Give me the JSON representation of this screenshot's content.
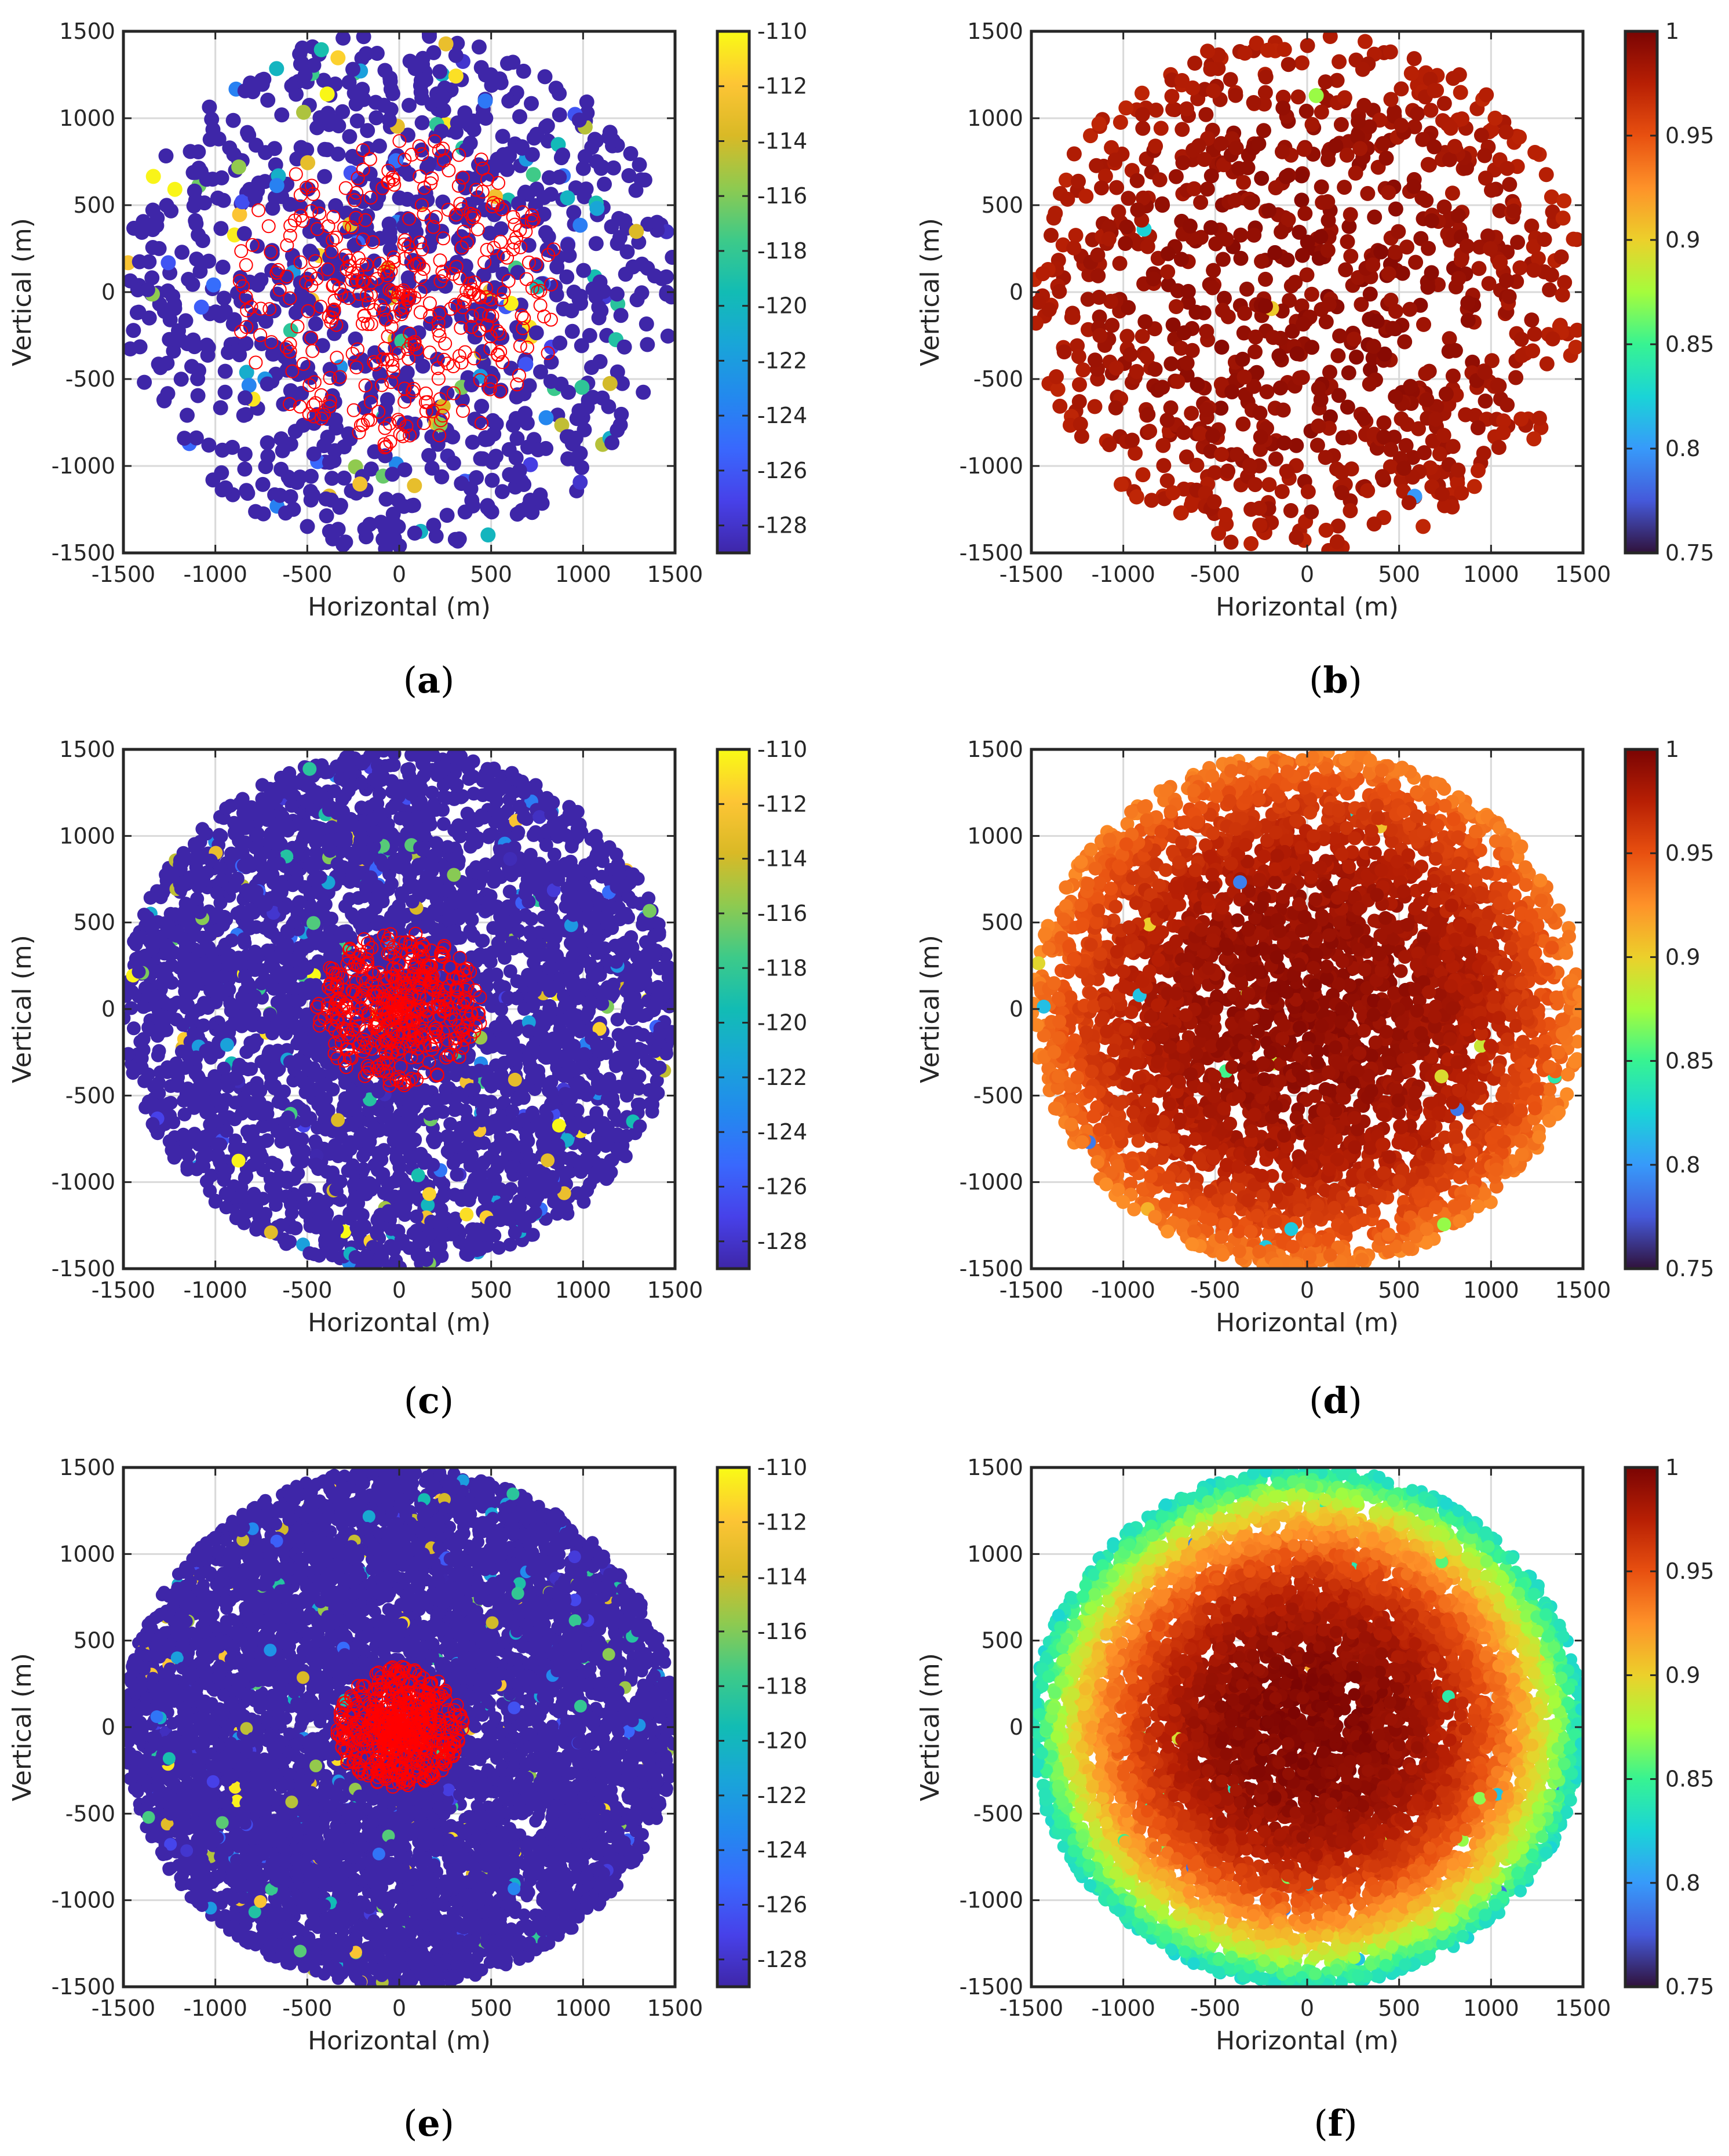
{
  "chart_data": [
    {
      "id": "a",
      "type": "scatter",
      "caption": "a",
      "xlabel": "Horizontal (m)",
      "ylabel": "Vertical (m)",
      "xlim": [
        -1500,
        1500
      ],
      "ylim": [
        -1500,
        1500
      ],
      "xticks": [
        "-1500",
        "-1000",
        "-500",
        "0",
        "500",
        "1000",
        "1500"
      ],
      "yticks": [
        "1500",
        "1000",
        "500",
        "0",
        "-500",
        "-1000",
        "-1500"
      ],
      "grid": true,
      "colorbar": {
        "colormap": "parula",
        "range": [
          -129,
          -110
        ],
        "ticks": [
          "-110",
          "-112",
          "-114",
          "-116",
          "-118",
          "-120",
          "-122",
          "-124",
          "-126",
          "-128"
        ]
      },
      "distribution": {
        "n_points": 1000,
        "radius_m": 1500,
        "dominant_value": -129,
        "outlier_fraction": 0.12,
        "highlight_circles": {
          "color": "#ff0000",
          "count": 380,
          "inner_radius_m": 900
        }
      }
    },
    {
      "id": "b",
      "type": "scatter",
      "caption": "b",
      "xlabel": "Horizontal (m)",
      "ylabel": "Vertical (m)",
      "xlim": [
        -1500,
        1500
      ],
      "ylim": [
        -1500,
        1500
      ],
      "xticks": [
        "-1500",
        "-1000",
        "-500",
        "0",
        "500",
        "1000",
        "1500"
      ],
      "yticks": [
        "1500",
        "1000",
        "500",
        "0",
        "-500",
        "-1000",
        "-1500"
      ],
      "grid": true,
      "colorbar": {
        "colormap": "turbo",
        "range": [
          0.75,
          1.0
        ],
        "ticks": [
          "1",
          "0.95",
          "0.9",
          "0.85",
          "0.8",
          "0.75"
        ]
      },
      "distribution": {
        "n_points": 1000,
        "radius_m": 1500,
        "center_value": 0.99,
        "edge_value": 0.975
      }
    },
    {
      "id": "c",
      "type": "scatter",
      "caption": "c",
      "xlabel": "Horizontal (m)",
      "ylabel": "Vertical (m)",
      "xlim": [
        -1500,
        1500
      ],
      "ylim": [
        -1500,
        1500
      ],
      "xticks": [
        "-1500",
        "-1000",
        "-500",
        "0",
        "500",
        "1000",
        "1500"
      ],
      "yticks": [
        "1500",
        "1000",
        "500",
        "0",
        "-500",
        "-1000",
        "-1500"
      ],
      "grid": true,
      "colorbar": {
        "colormap": "parula",
        "range": [
          -129,
          -110
        ],
        "ticks": [
          "-110",
          "-112",
          "-114",
          "-116",
          "-118",
          "-120",
          "-122",
          "-124",
          "-126",
          "-128"
        ]
      },
      "distribution": {
        "n_points": 3600,
        "radius_m": 1500,
        "dominant_value": -129,
        "outlier_fraction": 0.05,
        "highlight_circles": {
          "color": "#ff0000",
          "count": 420,
          "inner_radius_m": 450
        }
      }
    },
    {
      "id": "d",
      "type": "scatter",
      "caption": "d",
      "xlabel": "Horizontal (m)",
      "ylabel": "Vertical (m)",
      "xlim": [
        -1500,
        1500
      ],
      "ylim": [
        -1500,
        1500
      ],
      "xticks": [
        "-1500",
        "-1000",
        "-500",
        "0",
        "500",
        "1000",
        "1500"
      ],
      "yticks": [
        "1500",
        "1000",
        "500",
        "0",
        "-500",
        "-1000",
        "-1500"
      ],
      "grid": true,
      "colorbar": {
        "colormap": "turbo",
        "range": [
          0.75,
          1.0
        ],
        "ticks": [
          "1",
          "0.95",
          "0.9",
          "0.85",
          "0.8",
          "0.75"
        ]
      },
      "distribution": {
        "n_points": 3600,
        "radius_m": 1500,
        "center_value": 0.99,
        "edge_value": 0.93
      }
    },
    {
      "id": "e",
      "type": "scatter",
      "caption": "e",
      "xlabel": "Horizontal (m)",
      "ylabel": "Vertical (m)",
      "xlim": [
        -1500,
        1500
      ],
      "ylim": [
        -1500,
        1500
      ],
      "xticks": [
        "-1500",
        "-1000",
        "-500",
        "0",
        "500",
        "1000",
        "1500"
      ],
      "yticks": [
        "1500",
        "1000",
        "500",
        "0",
        "-500",
        "-1000",
        "-1500"
      ],
      "grid": true,
      "colorbar": {
        "colormap": "parula",
        "range": [
          -129,
          -110
        ],
        "ticks": [
          "-110",
          "-112",
          "-114",
          "-116",
          "-118",
          "-120",
          "-122",
          "-124",
          "-126",
          "-128"
        ]
      },
      "distribution": {
        "n_points": 7000,
        "radius_m": 1500,
        "dominant_value": -129,
        "outlier_fraction": 0.035,
        "highlight_circles": {
          "color": "#ff0000",
          "count": 520,
          "inner_radius_m": 350
        }
      }
    },
    {
      "id": "f",
      "type": "scatter",
      "caption": "f",
      "xlabel": "Horizontal (m)",
      "ylabel": "Vertical (m)",
      "xlim": [
        -1500,
        1500
      ],
      "ylim": [
        -1500,
        1500
      ],
      "xticks": [
        "-1500",
        "-1000",
        "-500",
        "0",
        "500",
        "1000",
        "1500"
      ],
      "yticks": [
        "1500",
        "1000",
        "500",
        "0",
        "-500",
        "-1000",
        "-1500"
      ],
      "grid": true,
      "colorbar": {
        "colormap": "turbo",
        "range": [
          0.75,
          1.0
        ],
        "ticks": [
          "1",
          "0.95",
          "0.9",
          "0.85",
          "0.8",
          "0.75"
        ]
      },
      "distribution": {
        "n_points": 7000,
        "radius_m": 1500,
        "center_value": 0.995,
        "edge_value": 0.83
      }
    }
  ]
}
